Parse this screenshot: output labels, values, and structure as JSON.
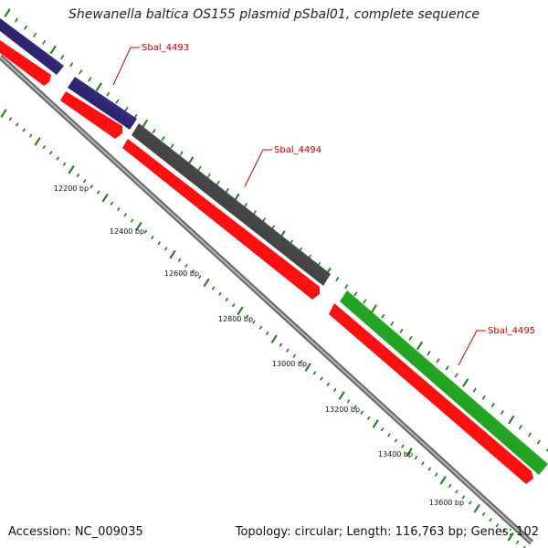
{
  "title": "Shewanella baltica OS155 plasmid pSbal01, complete sequence",
  "footer": {
    "accession": "Accession: NC_009035",
    "summary": "Topology: circular; Length: 116,763 bp; Genes: 102"
  },
  "colors": {
    "gene_purple": "#4a3d9a",
    "gene_gray": "#6b6b6b",
    "gene_green": "#3fcf3f",
    "cds_red": "#ff1010",
    "backbone": "#8c8c8c",
    "tick": "#1a7a1a",
    "label_red": "#cc0000"
  },
  "genes": [
    {
      "label": "Sbal_4493",
      "color": "purple"
    },
    {
      "label": "Sbal_4494",
      "color": "gray"
    },
    {
      "label": "Sbal_4495",
      "color": "green"
    }
  ],
  "ruler": [
    {
      "label": "12200 bp"
    },
    {
      "label": "12400 bp"
    },
    {
      "label": "12600 bp"
    },
    {
      "label": "12800 bp"
    },
    {
      "label": "13000 bp"
    },
    {
      "label": "13200 bp"
    },
    {
      "label": "13400 bp"
    },
    {
      "label": "13600 bp"
    }
  ]
}
